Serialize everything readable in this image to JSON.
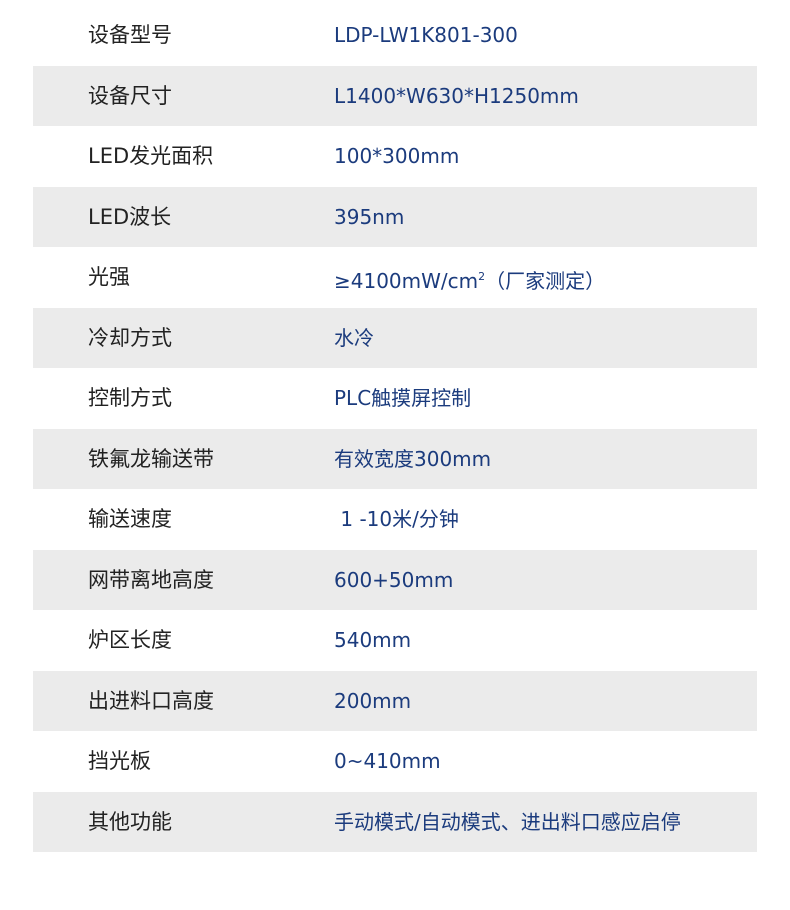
{
  "specs": [
    {
      "label": "设备型号",
      "value": "LDP-LW1K801-300"
    },
    {
      "label": "设备尺寸",
      "value": "L1400*W630*H1250mm"
    },
    {
      "label": "LED发光面积",
      "value": "100*300mm"
    },
    {
      "label": "LED波长",
      "value": "395nm"
    },
    {
      "label": "光强",
      "value": "≥4100mW/cm",
      "sup": "2",
      "suffix": "（厂家测定）"
    },
    {
      "label": "冷却方式",
      "value": "水冷"
    },
    {
      "label": "控制方式",
      "value": "PLC触摸屏控制"
    },
    {
      "label": "铁氟龙输送带",
      "value": "有效宽度300mm"
    },
    {
      "label": "输送速度",
      "value": " 1 -10米/分钟"
    },
    {
      "label": "网带离地高度",
      "value": "600+50mm"
    },
    {
      "label": "炉区长度",
      "value": "540mm"
    },
    {
      "label": "出进料口高度",
      "value": "200mm"
    },
    {
      "label": "挡光板",
      "value": "0~410mm"
    },
    {
      "label": "其他功能",
      "value": "手动模式/自动模式、进出料口感应启停"
    }
  ],
  "colors": {
    "stripe": "#ebebeb",
    "label": "#222222",
    "value": "#1b3b7d"
  }
}
